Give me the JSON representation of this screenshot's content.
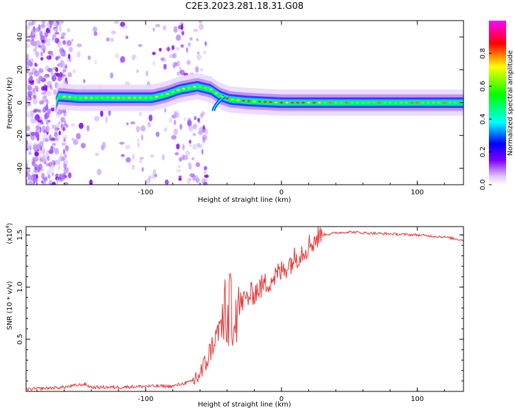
{
  "figure_title": "C2E3.2023.281.18.31.G08",
  "chart_data": [
    {
      "type": "heatmap",
      "xlabel": "Height of straight line (km)",
      "ylabel": "Frequency (Hz)",
      "xlim": [
        -188,
        134
      ],
      "ylim": [
        -50,
        50
      ],
      "x_ticks": [
        -100,
        0,
        100
      ],
      "x_tick_labels": [
        "-100",
        "0",
        "100"
      ],
      "y_ticks": [
        -40,
        -20,
        0,
        20,
        40
      ],
      "y_tick_labels": [
        "-40",
        "-20",
        "0",
        "20",
        "40"
      ],
      "colorbar": {
        "label": "Normalized spectral amplitude",
        "range": [
          0,
          1
        ],
        "ticks": [
          0.0,
          0.2,
          0.4,
          0.6,
          0.8
        ],
        "tick_labels": [
          "0.0",
          "0.2",
          "0.4",
          "0.6",
          "0.8"
        ],
        "colors": [
          "#ffffff",
          "#7b00ff",
          "#0000ff",
          "#00ffff",
          "#00ff00",
          "#ffff00",
          "#ff0000",
          "#ff00ff"
        ]
      },
      "ridge": [
        {
          "x": -165,
          "f": 4
        },
        {
          "x": -150,
          "f": 3
        },
        {
          "x": -130,
          "f": 3
        },
        {
          "x": -110,
          "f": 3
        },
        {
          "x": -95,
          "f": 3
        },
        {
          "x": -85,
          "f": 5
        },
        {
          "x": -75,
          "f": 8
        },
        {
          "x": -62,
          "f": 10
        },
        {
          "x": -52,
          "f": 8
        },
        {
          "x": -45,
          "f": 4
        },
        {
          "x": -38,
          "f": 2
        },
        {
          "x": -25,
          "f": 1
        },
        {
          "x": 0,
          "f": 0
        },
        {
          "x": 134,
          "f": 0
        }
      ]
    },
    {
      "type": "line",
      "xlabel": "Height of straight line (km)",
      "ylabel": "SNR (10 * v/v)",
      "y_scale_label": "(x10",
      "y_scale_exponent": "4",
      "y_scale_suffix": ")",
      "xlim": [
        -188,
        134
      ],
      "ylim": [
        0,
        1.58
      ],
      "x_ticks": [
        -100,
        0,
        100
      ],
      "x_tick_labels": [
        "-100",
        "0",
        "100"
      ],
      "y_ticks": [
        0.5,
        1.0,
        1.5
      ],
      "y_tick_labels": [
        "0.5",
        "1.0",
        "1.5"
      ],
      "color": "#e83030",
      "x": [
        -188,
        -160,
        -145,
        -140,
        -120,
        -100,
        -80,
        -65,
        -58,
        -52,
        -46,
        -40,
        -35,
        -30,
        -25,
        -20,
        -15,
        -10,
        -5,
        0,
        5,
        10,
        15,
        20,
        25,
        30,
        40,
        50,
        60,
        80,
        100,
        120,
        134
      ],
      "y": [
        0.02,
        0.04,
        0.07,
        0.04,
        0.04,
        0.05,
        0.05,
        0.1,
        0.2,
        0.4,
        0.6,
        0.75,
        0.8,
        0.85,
        0.9,
        0.95,
        1.0,
        1.05,
        1.1,
        1.15,
        1.22,
        1.28,
        1.34,
        1.4,
        1.46,
        1.5,
        1.52,
        1.53,
        1.52,
        1.51,
        1.5,
        1.48,
        1.45
      ]
    }
  ]
}
